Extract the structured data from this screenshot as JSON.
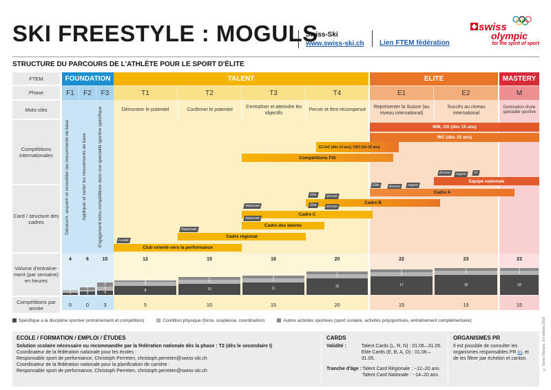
{
  "header": {
    "title": "SKI FREESTYLE : MOGULS",
    "org_name": "Swiss-Ski",
    "org_url": "www.swiss-ski.ch",
    "ftem_link": "Lien FTEM fédération",
    "logo_swiss": "swiss",
    "logo_olympic": "olympic",
    "logo_tagline": "for the spirit of sport"
  },
  "subtitle": "STRUCTURE DU PARCOURS DE L'ATHLÈTE POUR LE SPORT D'ÉLITE",
  "row_labels": {
    "ftem": "FTEM",
    "phase": "Phase",
    "keywords": "Mots-clés",
    "competitions": "Compétitions internationales",
    "cards": "Card / structure des cadres",
    "volume": "Volume d'entraîne-ment (par semaine) en heures",
    "comp_per_year": "Compétitions par année"
  },
  "ftem": {
    "foundation": "FOUNDATION",
    "talent": "TALENT",
    "elite": "ELITE",
    "mastery": "MASTERY"
  },
  "phases": [
    "F1",
    "F2",
    "F3",
    "T1",
    "T2",
    "T3",
    "T4",
    "E1",
    "E2",
    "M"
  ],
  "keywords": {
    "t1": "Démontrer le potentiel",
    "t2": "Confirmer le potentiel",
    "t3": "S'entraîner et atteindre les objectifs",
    "t4": "Percer et être récompensé",
    "e1": "Représenter la Suisse (au niveau international)",
    "e2": "Succès au niveau international",
    "m": "Domination d'une spécialité sportive"
  },
  "foundation_text": {
    "f1": "Découvrir, acquérir et consolider les mouvements de base",
    "f2": "Appliquer et varier les mouvements de base",
    "f3": "Engagement et/ou compétitions dans une spécialité sportive spécifique"
  },
  "competitions": {
    "wm": "WM, OS (dès 15 ans)",
    "wc": "WC (dès 15 ans)",
    "ecjoc": "ECJoC (dès 14 ans), CMJ (14–20 ans)",
    "fis": "Compétitions FIS"
  },
  "cards": {
    "nationale_team": "Equipe nationale",
    "cadre_a": "Cadre A",
    "cadre_b": "Cadre B",
    "cadre_c": "Cadre C",
    "cadre_talents": "Cadre des talents",
    "cadre_regional": "Cadre régional",
    "club": "Club orienté vers la performance",
    "tag_locale": "Locale",
    "tag_regionale": "Régionale",
    "tag_nationale": "Nationale",
    "tag_elite": "Elite",
    "tag_bronze": "Bronze",
    "tag_argent": "Argent",
    "tag_or": "Or"
  },
  "volume": {
    "totals": [
      "4",
      "6",
      "10",
      "12",
      "15",
      "16",
      "20",
      "22",
      "23",
      "23"
    ],
    "specific": [
      "2",
      "3",
      "4",
      "8",
      "10",
      "11",
      "15",
      "17",
      "18",
      "18"
    ],
    "physical": [
      "2",
      "1",
      "3",
      "3",
      "3",
      "3",
      "3",
      "3",
      "3",
      "3"
    ],
    "other": [
      "",
      "2",
      "3",
      "1",
      "2",
      "2",
      "2",
      "2",
      "2",
      "2"
    ]
  },
  "comp_per_year": [
    "0",
    "0",
    "3",
    "5",
    "10",
    "15",
    "20",
    "15",
    "15",
    "15"
  ],
  "legend": {
    "specific": "Spécifique à la discipline sportive (entraînement et compétition)",
    "physical": "Condition physique (force, souplesse, coordination)",
    "other": "Autres activités sportives (sport scolaire, activités polysportives, entraînement complémentaire)"
  },
  "footer": {
    "school_title": "ECOLE / FORMATION / EMPLOI / ÉTUDES",
    "school_line1": "Solution scolaire nécessaire ou recommandée par la fédération nationale dès la phase : T2 (dès le secondaire I)",
    "school_line2": "Coordinateur de la fédération nationale pour les écoles :",
    "school_line3": "Responsable sport de performance, Christoph Perreten, christoph.perreten@swiss-ski.ch",
    "school_line4": "Coordinateur de la fédération nationale pour la planification de carrière :",
    "school_line5": "Responsable sport de performance, Christoph Perreten, christoph.perreten@swiss-ski.ch",
    "cards_title": "CARDS",
    "validity_label": "Validité :",
    "validity_1": "Talent Cards (L, R, N) : 01.06.–31.05.",
    "validity_2": "Elite Cards (E, B, A, O) : 01.06.–31.05.",
    "age_label": "Tranche d'âge :",
    "age_1": "Talent Card Régionale : ~12–20 ans",
    "age_2": "Talent Card Nationale : ~14–20 ans",
    "pr_title": "ORGANISMES PR",
    "pr_text": "Il est possible de consulter les organismes responsables PR",
    "pr_link": "ici",
    "pr_text2": ", et de les filtrer par échelon et canton."
  },
  "copyright": "© Swiss Olympic, 1re édition 2018",
  "colors": {
    "foundation": "#1b8fd0",
    "foundation_light": "#c9e4f5",
    "talent": "#f5b400",
    "talent_light": "#fdf1c4",
    "elite": "#e97527",
    "elite_light": "#fbdcc5",
    "mastery": "#d62c3a",
    "mastery_light": "#f7d0cf"
  }
}
